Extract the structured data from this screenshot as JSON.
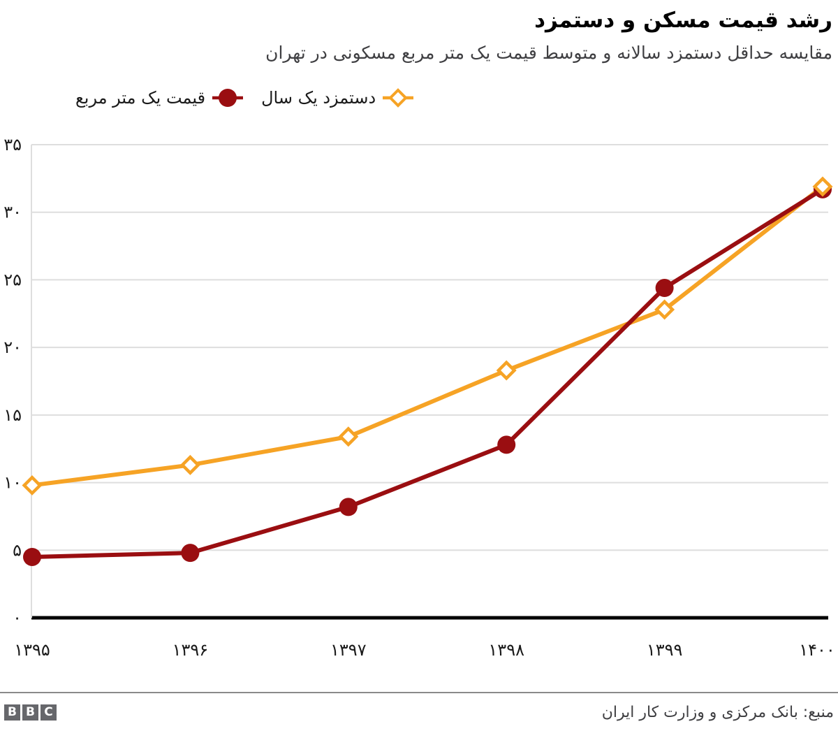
{
  "header": {
    "title": "رشد قیمت مسکن و دستمزد",
    "subtitle": "مقایسه حداقل دستمزد سالانه و متوسط قیمت یک متر مربع مسکونی در تهران"
  },
  "legend": {
    "items": [
      {
        "label": "دستمزد یک سال",
        "marker": "diamond",
        "color": "#f6a325"
      },
      {
        "label": "قیمت یک متر مربع",
        "marker": "circle",
        "color": "#9a0e11"
      }
    ]
  },
  "chart_data": {
    "type": "line",
    "x": [
      1395,
      1396,
      1397,
      1398,
      1399,
      1400
    ],
    "x_tick_labels": [
      "۱۳۹۵",
      "۱۳۹۶",
      "۱۳۹۷",
      "۱۳۹۸",
      "۱۳۹۹",
      "۱۴۰۰"
    ],
    "series": [
      {
        "name": "دستمزد یک سال",
        "color": "#f6a325",
        "marker": "diamond",
        "values": [
          9.8,
          11.3,
          13.4,
          18.3,
          22.8,
          31.9
        ]
      },
      {
        "name": "قیمت یک متر مربع",
        "color": "#9a0e11",
        "marker": "circle",
        "values": [
          4.5,
          4.8,
          8.2,
          12.8,
          24.4,
          31.7
        ]
      }
    ],
    "ylim": [
      0,
      35
    ],
    "y_tick_step": 5,
    "y_tick_labels": [
      "۰",
      "۵",
      "۱۰",
      "۱۵",
      "۲۰",
      "۲۵",
      "۳۰",
      "۳۵"
    ],
    "grid": "horizontal",
    "legend_position": "top-left"
  },
  "colors": {
    "grid": "#dedede",
    "axis": "#000000",
    "tick_text": "#1a1a1a",
    "subtitle_text": "#3f3f42",
    "divider": "#8a8a8a",
    "bbc_gray": "#66676b"
  },
  "footer": {
    "logo_letters": [
      "B",
      "B",
      "C"
    ],
    "source": "منبع: بانک مرکزی و وزارت کار ایران"
  }
}
